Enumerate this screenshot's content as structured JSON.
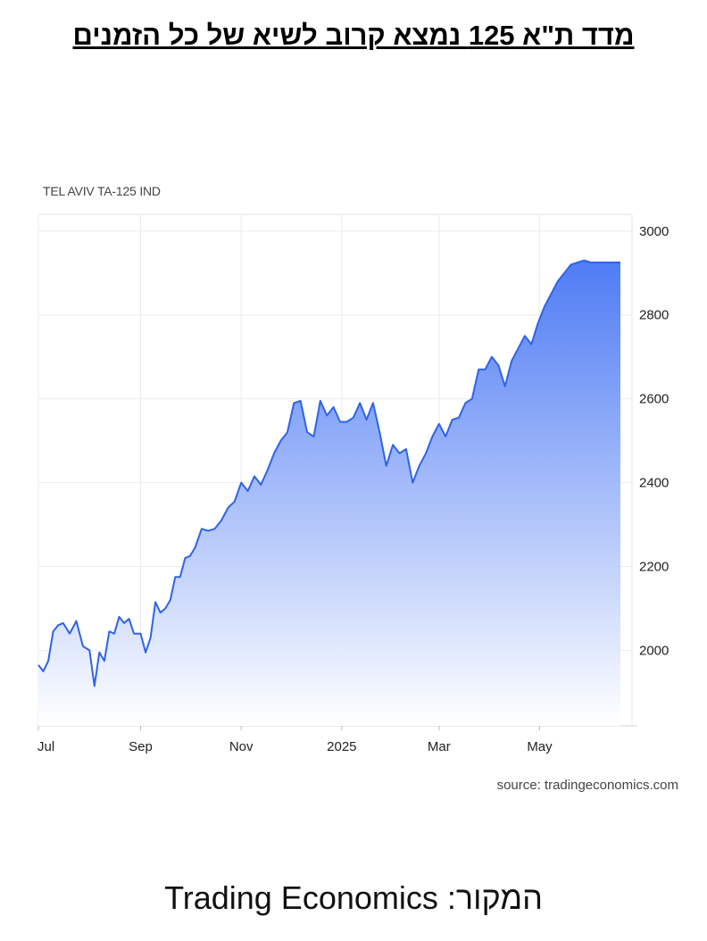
{
  "headline": "מדד ת\"א 125 נמצא קרוב לשיא של כל הזמנים",
  "footer": "המקור: Trading Economics",
  "chart_data": {
    "type": "area",
    "title": "TEL AVIV TA-125 IND",
    "source": "source: tradingeconomics.com",
    "x_ticks": [
      "Jul",
      "Sep",
      "Nov",
      "2025",
      "Mar",
      "May"
    ],
    "y_ticks": [
      2000,
      2200,
      2400,
      2600,
      2800,
      3000
    ],
    "ylim": [
      1820,
      3040
    ],
    "y_axis_side": "right",
    "grid": true,
    "colors": {
      "line": "#2f63e8",
      "fill_top": "#4f7cf5",
      "fill_bottom": "#ffffff"
    },
    "series": [
      {
        "x": [
          "2024-07-01",
          "2024-07-04",
          "2024-07-07",
          "2024-07-10",
          "2024-07-13",
          "2024-07-16",
          "2024-07-20",
          "2024-07-24",
          "2024-07-28",
          "2024-08-01",
          "2024-08-04",
          "2024-08-07",
          "2024-08-10",
          "2024-08-13",
          "2024-08-16",
          "2024-08-19",
          "2024-08-22",
          "2024-08-25",
          "2024-08-28",
          "2024-09-01",
          "2024-09-04",
          "2024-09-07",
          "2024-09-10",
          "2024-09-13",
          "2024-09-16",
          "2024-09-19",
          "2024-09-22",
          "2024-09-25",
          "2024-09-28",
          "2024-10-01",
          "2024-10-04",
          "2024-10-08",
          "2024-10-12",
          "2024-10-16",
          "2024-10-20",
          "2024-10-24",
          "2024-10-28",
          "2024-11-01",
          "2024-11-05",
          "2024-11-09",
          "2024-11-13",
          "2024-11-17",
          "2024-11-21",
          "2024-11-25",
          "2024-11-29",
          "2024-12-03",
          "2024-12-07",
          "2024-12-11",
          "2024-12-15",
          "2024-12-19",
          "2024-12-23",
          "2024-12-27",
          "2024-12-31",
          "2025-01-04",
          "2025-01-08",
          "2025-01-12",
          "2025-01-16",
          "2025-01-20",
          "2025-01-24",
          "2025-01-28",
          "2025-02-01",
          "2025-02-05",
          "2025-02-09",
          "2025-02-13",
          "2025-02-17",
          "2025-02-21",
          "2025-02-25",
          "2025-03-01",
          "2025-03-05",
          "2025-03-09",
          "2025-03-13",
          "2025-03-17",
          "2025-03-21",
          "2025-03-25",
          "2025-03-29",
          "2025-04-02",
          "2025-04-06",
          "2025-04-10",
          "2025-04-14",
          "2025-04-18",
          "2025-04-22",
          "2025-04-26",
          "2025-04-30",
          "2025-05-04",
          "2025-05-08",
          "2025-05-12",
          "2025-05-16",
          "2025-05-20",
          "2025-05-24",
          "2025-05-28",
          "2025-06-01",
          "2025-06-05",
          "2025-06-09",
          "2025-06-13",
          "2025-06-17",
          "2025-06-19"
        ],
        "values": [
          1965,
          1950,
          1975,
          2045,
          2060,
          2065,
          2040,
          2070,
          2010,
          2000,
          1915,
          1995,
          1975,
          2045,
          2040,
          2080,
          2065,
          2075,
          2040,
          2040,
          1995,
          2030,
          2115,
          2090,
          2100,
          2120,
          2175,
          2175,
          2220,
          2225,
          2245,
          2290,
          2285,
          2290,
          2310,
          2340,
          2355,
          2400,
          2380,
          2415,
          2395,
          2430,
          2470,
          2500,
          2520,
          2590,
          2595,
          2520,
          2510,
          2595,
          2560,
          2580,
          2545,
          2545,
          2555,
          2590,
          2550,
          2590,
          2520,
          2440,
          2490,
          2470,
          2480,
          2400,
          2440,
          2470,
          2510,
          2540,
          2510,
          2550,
          2555,
          2590,
          2600,
          2670,
          2670,
          2700,
          2680,
          2630,
          2690,
          2720,
          2750,
          2730,
          2780,
          2820,
          2850,
          2880,
          2900,
          2920,
          2925,
          2930,
          2925,
          2925,
          2925,
          2925,
          2925,
          2925
        ]
      }
    ]
  }
}
